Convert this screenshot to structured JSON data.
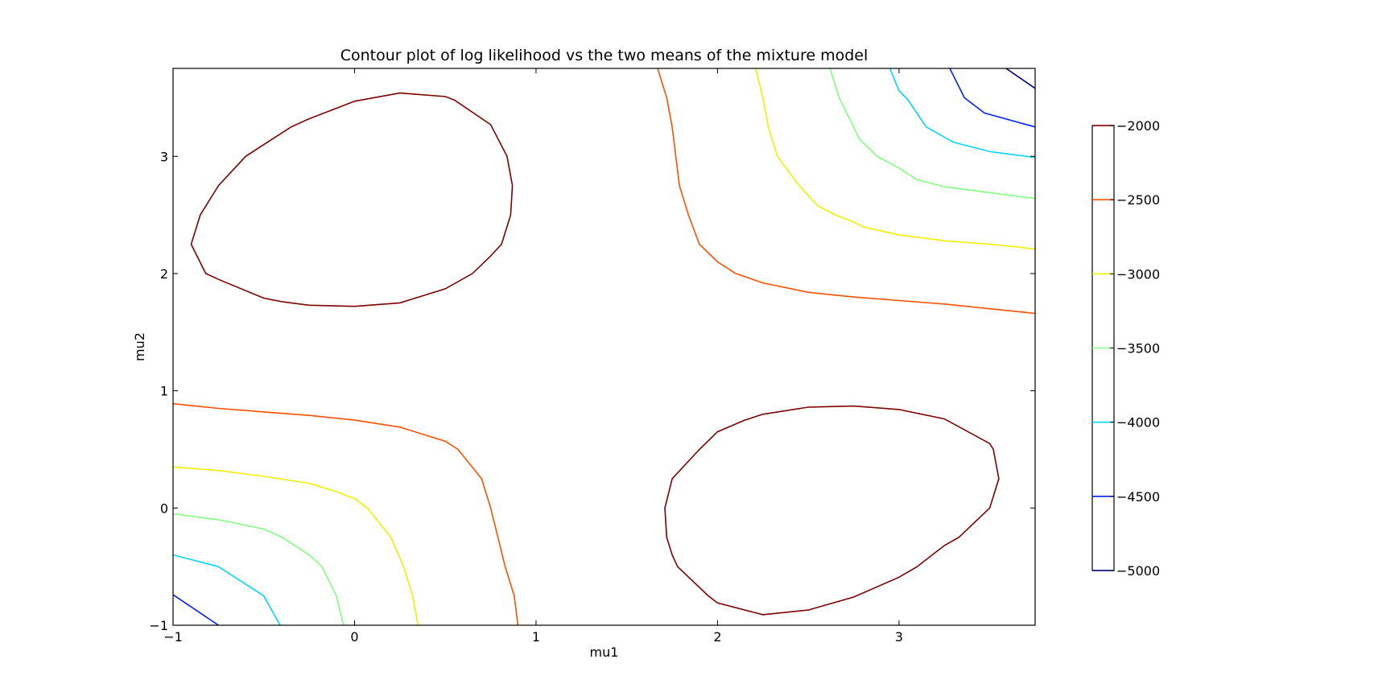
{
  "chart_data": {
    "type": "contour",
    "title": "Contour plot of log likelihood vs the two means of the mixture model",
    "xlabel": "mu1",
    "ylabel": "mu2",
    "xlim": [
      -1,
      3.75
    ],
    "ylim": [
      -1,
      3.75
    ],
    "xticks": [
      -1,
      0,
      1,
      2,
      3
    ],
    "yticks": [
      -1,
      0,
      1,
      2,
      3
    ],
    "xtick_labels": [
      "−1",
      "0",
      "1",
      "2",
      "3"
    ],
    "ytick_labels": [
      "−1",
      "0",
      "1",
      "2",
      "3"
    ],
    "colorbar": {
      "levels": [
        -2000,
        -2500,
        -3000,
        -3500,
        -4000,
        -4500,
        -5000
      ],
      "labels": [
        "−2000",
        "−2500",
        "−3000",
        "−3500",
        "−4000",
        "−4500",
        "−5000"
      ],
      "colors": [
        "#7f0000",
        "#ff5000",
        "#f0f000",
        "#80ff80",
        "#00d4ff",
        "#0020ff",
        "#00007f"
      ]
    },
    "contours": [
      {
        "level": -2000,
        "color": "#7f0000",
        "closed": true,
        "points": [
          [
            -0.9,
            2.25
          ],
          [
            -0.85,
            2.5
          ],
          [
            -0.75,
            2.75
          ],
          [
            -0.6,
            3.0
          ],
          [
            -0.5,
            3.1
          ],
          [
            -0.35,
            3.25
          ],
          [
            -0.25,
            3.32
          ],
          [
            0.0,
            3.47
          ],
          [
            0.25,
            3.54
          ],
          [
            0.5,
            3.51
          ],
          [
            0.55,
            3.48
          ],
          [
            0.75,
            3.27
          ],
          [
            0.84,
            3.0
          ],
          [
            0.87,
            2.75
          ],
          [
            0.86,
            2.5
          ],
          [
            0.81,
            2.25
          ],
          [
            0.75,
            2.15
          ],
          [
            0.65,
            2.0
          ],
          [
            0.5,
            1.87
          ],
          [
            0.25,
            1.75
          ],
          [
            0.0,
            1.72
          ],
          [
            -0.25,
            1.73
          ],
          [
            -0.4,
            1.76
          ],
          [
            -0.5,
            1.79
          ],
          [
            -0.75,
            1.95
          ],
          [
            -0.82,
            2.0
          ]
        ]
      },
      {
        "level": -2000,
        "color": "#7f0000",
        "closed": true,
        "points": [
          [
            1.75,
            0.25
          ],
          [
            1.9,
            0.5
          ],
          [
            2.0,
            0.65
          ],
          [
            2.15,
            0.75
          ],
          [
            2.25,
            0.8
          ],
          [
            2.5,
            0.86
          ],
          [
            2.75,
            0.87
          ],
          [
            3.0,
            0.84
          ],
          [
            3.25,
            0.76
          ],
          [
            3.5,
            0.55
          ],
          [
            3.52,
            0.5
          ],
          [
            3.55,
            0.25
          ],
          [
            3.5,
            0.0
          ],
          [
            3.33,
            -0.25
          ],
          [
            3.25,
            -0.32
          ],
          [
            3.1,
            -0.5
          ],
          [
            3.0,
            -0.59
          ],
          [
            2.75,
            -0.76
          ],
          [
            2.5,
            -0.87
          ],
          [
            2.25,
            -0.91
          ],
          [
            2.0,
            -0.81
          ],
          [
            1.95,
            -0.75
          ],
          [
            1.78,
            -0.5
          ],
          [
            1.75,
            -0.4
          ],
          [
            1.72,
            -0.25
          ],
          [
            1.71,
            0.0
          ]
        ]
      },
      {
        "level": -2500,
        "color": "#ff5000",
        "closed": false,
        "points": [
          [
            1.67,
            3.75
          ],
          [
            1.72,
            3.5
          ],
          [
            1.75,
            3.25
          ],
          [
            1.79,
            2.75
          ],
          [
            1.84,
            2.5
          ],
          [
            1.9,
            2.25
          ],
          [
            2.0,
            2.1
          ],
          [
            2.1,
            2.0
          ],
          [
            2.25,
            1.92
          ],
          [
            2.5,
            1.84
          ],
          [
            2.75,
            1.8
          ],
          [
            3.0,
            1.77
          ],
          [
            3.25,
            1.74
          ],
          [
            3.5,
            1.7
          ],
          [
            3.75,
            1.66
          ]
        ]
      },
      {
        "level": -2500,
        "color": "#ff5000",
        "closed": false,
        "points": [
          [
            -1.0,
            0.89
          ],
          [
            -0.75,
            0.85
          ],
          [
            -0.5,
            0.82
          ],
          [
            -0.25,
            0.79
          ],
          [
            0.0,
            0.75
          ],
          [
            0.25,
            0.69
          ],
          [
            0.5,
            0.57
          ],
          [
            0.57,
            0.5
          ],
          [
            0.7,
            0.25
          ],
          [
            0.75,
            0.0
          ],
          [
            0.79,
            -0.25
          ],
          [
            0.83,
            -0.5
          ],
          [
            0.88,
            -0.75
          ],
          [
            0.9,
            -1.0
          ]
        ]
      },
      {
        "level": -3000,
        "color": "#f0f000",
        "closed": false,
        "points": [
          [
            2.21,
            3.75
          ],
          [
            2.25,
            3.5
          ],
          [
            2.28,
            3.25
          ],
          [
            2.33,
            3.0
          ],
          [
            2.45,
            2.75
          ],
          [
            2.55,
            2.58
          ],
          [
            2.65,
            2.5
          ],
          [
            2.75,
            2.44
          ],
          [
            2.8,
            2.4
          ],
          [
            3.0,
            2.33
          ],
          [
            3.25,
            2.28
          ],
          [
            3.5,
            2.25
          ],
          [
            3.75,
            2.21
          ]
        ]
      },
      {
        "level": -3000,
        "color": "#f0f000",
        "closed": false,
        "points": [
          [
            -1.0,
            0.35
          ],
          [
            -0.75,
            0.32
          ],
          [
            -0.5,
            0.27
          ],
          [
            -0.25,
            0.21
          ],
          [
            -0.1,
            0.14
          ],
          [
            0.0,
            0.08
          ],
          [
            0.07,
            0.0
          ],
          [
            0.2,
            -0.25
          ],
          [
            0.27,
            -0.5
          ],
          [
            0.32,
            -0.75
          ],
          [
            0.35,
            -1.0
          ]
        ]
      },
      {
        "level": -3500,
        "color": "#80ff80",
        "closed": false,
        "points": [
          [
            2.62,
            3.75
          ],
          [
            2.67,
            3.5
          ],
          [
            2.75,
            3.25
          ],
          [
            2.78,
            3.15
          ],
          [
            2.88,
            3.0
          ],
          [
            3.0,
            2.9
          ],
          [
            3.1,
            2.8
          ],
          [
            3.25,
            2.74
          ],
          [
            3.5,
            2.69
          ],
          [
            3.75,
            2.64
          ]
        ]
      },
      {
        "level": -3500,
        "color": "#80ff80",
        "closed": false,
        "points": [
          [
            -1.0,
            -0.05
          ],
          [
            -0.75,
            -0.1
          ],
          [
            -0.5,
            -0.18
          ],
          [
            -0.4,
            -0.25
          ],
          [
            -0.25,
            -0.4
          ],
          [
            -0.18,
            -0.5
          ],
          [
            -0.1,
            -0.75
          ],
          [
            -0.06,
            -1.0
          ]
        ]
      },
      {
        "level": -4000,
        "color": "#00d4ff",
        "closed": false,
        "points": [
          [
            2.95,
            3.75
          ],
          [
            3.0,
            3.56
          ],
          [
            3.05,
            3.48
          ],
          [
            3.15,
            3.25
          ],
          [
            3.3,
            3.12
          ],
          [
            3.5,
            3.04
          ],
          [
            3.75,
            2.99
          ]
        ]
      },
      {
        "level": -4000,
        "color": "#00d4ff",
        "closed": false,
        "points": [
          [
            -1.0,
            -0.4
          ],
          [
            -0.75,
            -0.5
          ],
          [
            -0.5,
            -0.75
          ],
          [
            -0.41,
            -1.0
          ]
        ]
      },
      {
        "level": -4500,
        "color": "#0020ff",
        "closed": false,
        "points": [
          [
            3.28,
            3.75
          ],
          [
            3.36,
            3.5
          ],
          [
            3.47,
            3.37
          ],
          [
            3.75,
            3.25
          ]
        ]
      },
      {
        "level": -4500,
        "color": "#0020ff",
        "closed": false,
        "points": [
          [
            -1.0,
            -0.74
          ],
          [
            -0.75,
            -1.0
          ]
        ]
      },
      {
        "level": -5000,
        "color": "#00007f",
        "closed": false,
        "points": [
          [
            3.59,
            3.75
          ],
          [
            3.75,
            3.58
          ]
        ]
      }
    ]
  }
}
